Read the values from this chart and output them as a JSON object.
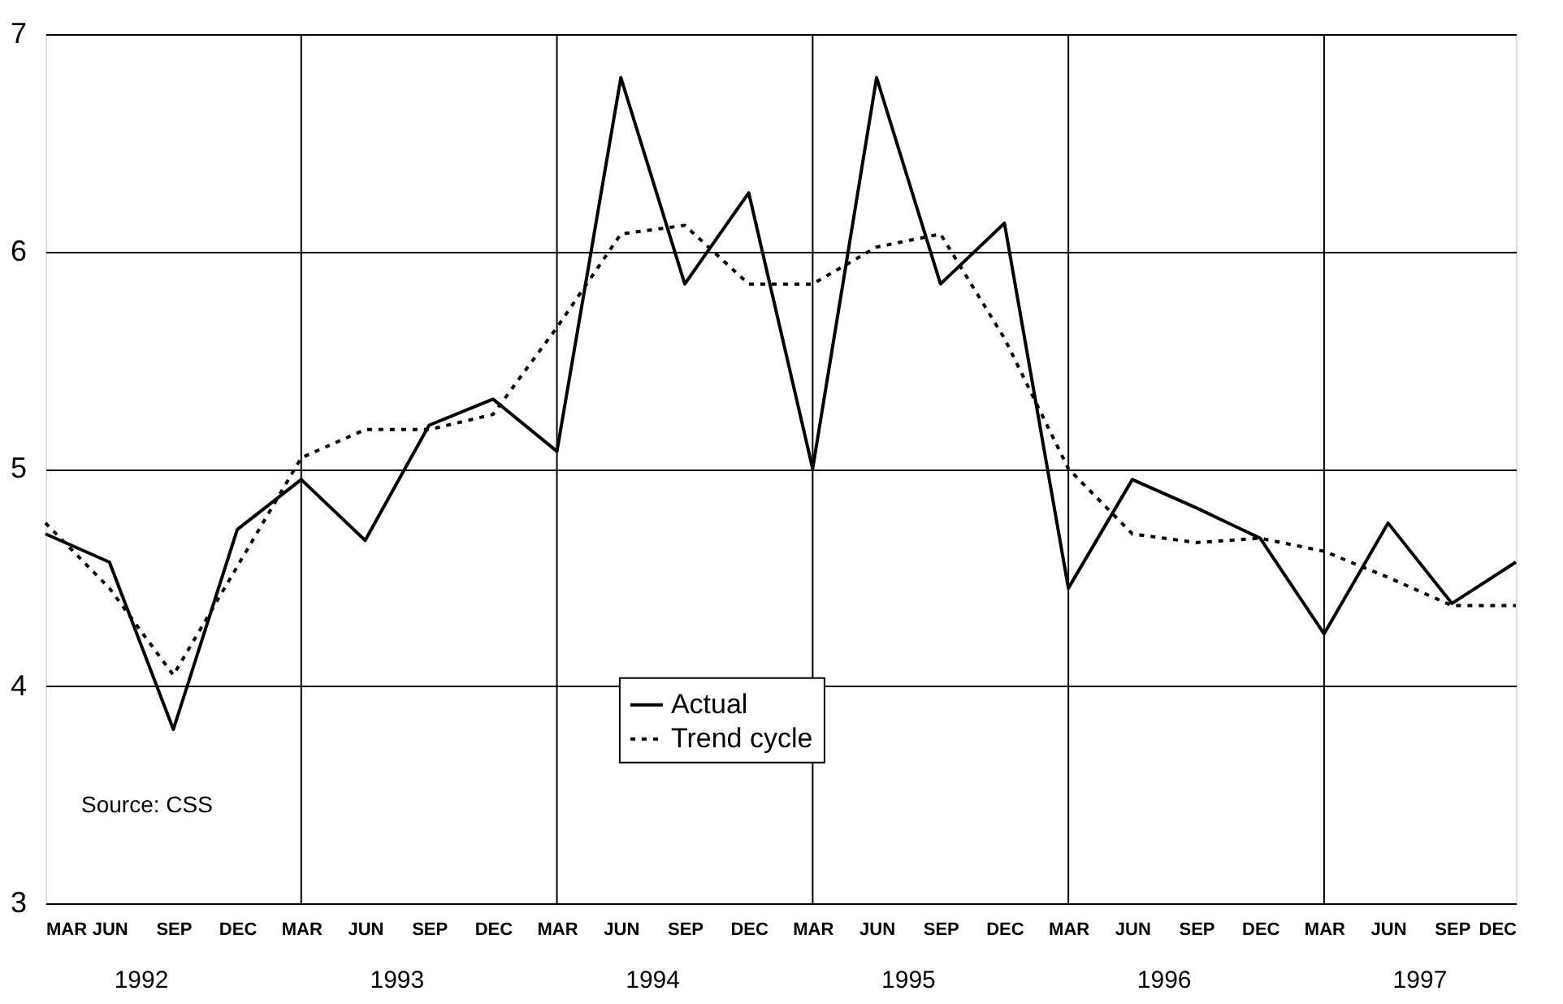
{
  "chart_data": {
    "type": "line",
    "categories": [
      "MAR",
      "JUN",
      "SEP",
      "DEC",
      "MAR",
      "JUN",
      "SEP",
      "DEC",
      "MAR",
      "JUN",
      "SEP",
      "DEC",
      "MAR",
      "JUN",
      "SEP",
      "DEC",
      "MAR",
      "JUN",
      "SEP",
      "DEC",
      "MAR",
      "JUN",
      "SEP",
      "DEC"
    ],
    "series": [
      {
        "name": "Actual",
        "color": "#000000",
        "line_style": "solid",
        "values": [
          4.7,
          4.57,
          3.8,
          4.72,
          4.95,
          4.67,
          5.2,
          5.32,
          5.08,
          6.8,
          5.85,
          6.27,
          5.0,
          6.8,
          5.85,
          6.13,
          4.45,
          4.95,
          4.82,
          4.68,
          4.24,
          4.75,
          4.38,
          4.57
        ]
      },
      {
        "name": "Trend cycle",
        "color": "#000000",
        "line_style": "dotted",
        "values": [
          4.75,
          4.45,
          4.05,
          4.55,
          5.05,
          5.18,
          5.18,
          5.25,
          5.65,
          6.08,
          6.12,
          5.85,
          5.85,
          6.02,
          6.08,
          5.6,
          5.0,
          4.7,
          4.66,
          4.68,
          4.62,
          4.5,
          4.37,
          4.37
        ]
      }
    ],
    "ylim": [
      3,
      7
    ],
    "yticks": [
      3,
      4,
      5,
      6,
      7
    ],
    "grid": true,
    "legend": "bottom",
    "annotations": [
      "1992",
      "1993",
      "1994",
      "1995",
      "1996",
      "1997",
      "Source: CSS"
    ]
  }
}
